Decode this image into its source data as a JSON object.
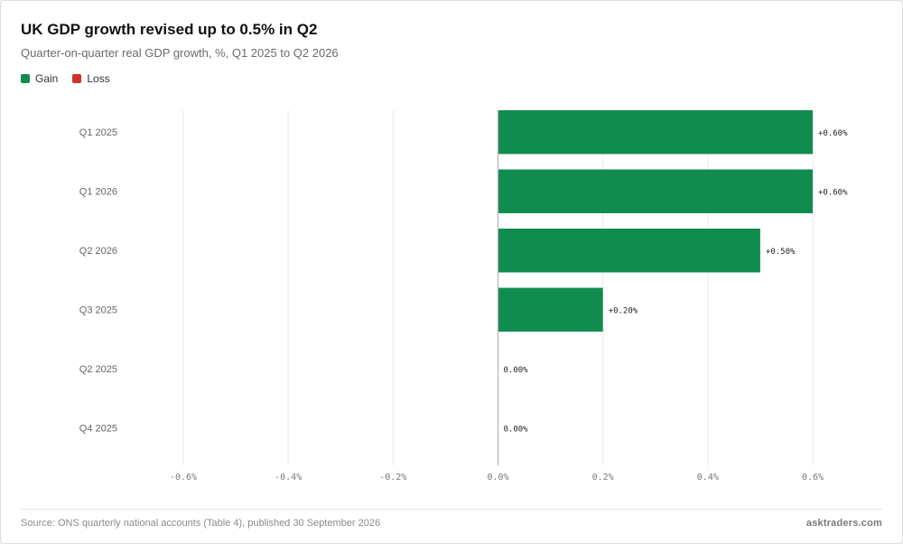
{
  "header": {
    "title": "UK GDP growth revised up to 0.5% in Q2",
    "subtitle": "Quarter-on-quarter real GDP growth, %, Q1 2025 to Q2 2026"
  },
  "legend": [
    {
      "label": "Gain",
      "color": "#118c4f"
    },
    {
      "label": "Loss",
      "color": "#d0312d"
    }
  ],
  "footer": {
    "source": "Source: ONS quarterly national accounts (Table 4), published 30 September 2026",
    "brand": "asktraders.com"
  },
  "chart_data": {
    "type": "bar",
    "orientation": "horizontal",
    "categories": [
      "Q1 2025",
      "Q1 2026",
      "Q2 2026",
      "Q3 2025",
      "Q2 2025",
      "Q4 2025"
    ],
    "values": [
      0.6,
      0.6,
      0.5,
      0.2,
      0.0,
      0.0
    ],
    "data_labels": [
      "+0.60%",
      "+0.60%",
      "+0.50%",
      "+0.20%",
      "0.00%",
      "0.00%"
    ],
    "xlim": [
      -0.6,
      0.6
    ],
    "x_ticks": [
      -0.6,
      -0.4,
      -0.2,
      0.0,
      0.2,
      0.4,
      0.6
    ],
    "x_tick_labels": [
      "-0.6%",
      "-0.4%",
      "-0.2%",
      "0.0%",
      "0.2%",
      "0.4%",
      "0.6%"
    ],
    "colors": {
      "positive": "#118c4f",
      "negative": "#d0312d",
      "grid": "#e8e8e8",
      "zero_line": "#b5b5b5"
    },
    "grid": true,
    "legend_position": "top-left"
  }
}
